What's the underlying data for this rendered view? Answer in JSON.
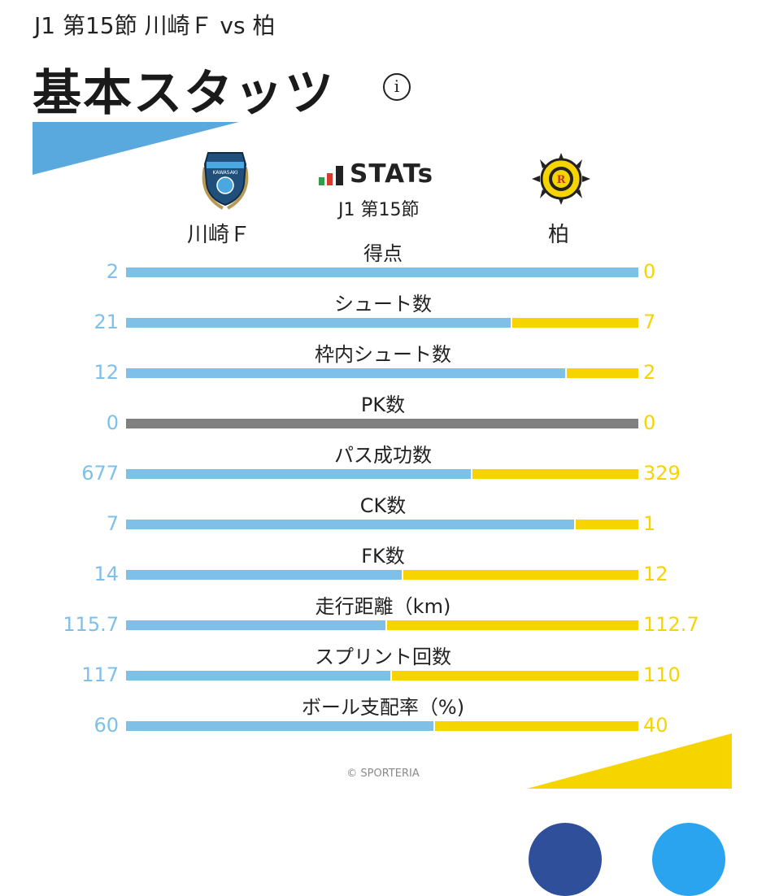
{
  "header": {
    "subtitle": "J1 第15節 川崎Ｆ vs 柏",
    "title": "基本スタッツ",
    "info_icon": "i"
  },
  "brand": {
    "stats_word": "STATs",
    "round": "J1 第15節"
  },
  "teams": {
    "home": {
      "name": "川崎Ｆ",
      "logo_icon": "kawasaki-frontale-crest-icon",
      "logo_text": "KAWASAKI"
    },
    "away": {
      "name": "柏",
      "logo_icon": "kashiwa-reysol-crest-icon",
      "logo_text": "KASHIWA REYSOL"
    }
  },
  "colors": {
    "home": "#7ec0e8",
    "away": "#f6d400",
    "empty": "#808080",
    "deco_top": "#5aa9de",
    "deco_bottom": "#f6d400"
  },
  "chart_data": {
    "type": "bar",
    "orientation": "horizontal-stacked-share",
    "categories": [
      "得点",
      "シュート数",
      "枠内シュート数",
      "PK数",
      "パス成功数",
      "CK数",
      "FK数",
      "走行距離（km)",
      "スプリント回数",
      "ボール支配率（%)"
    ],
    "series": [
      {
        "name": "川崎Ｆ",
        "values": [
          2,
          21,
          12,
          0,
          677,
          7,
          14,
          115.7,
          117,
          60
        ]
      },
      {
        "name": "柏",
        "values": [
          0,
          7,
          2,
          0,
          329,
          1,
          12,
          112.7,
          110,
          40
        ]
      }
    ],
    "labels_home": [
      "2",
      "21",
      "12",
      "0",
      "677",
      "7",
      "14",
      "115.7",
      "117",
      "60"
    ],
    "labels_away": [
      "0",
      "7",
      "2",
      "0",
      "329",
      "1",
      "12",
      "112.7",
      "110",
      "40"
    ]
  },
  "footer": {
    "credit": "© SPORTERIA"
  }
}
